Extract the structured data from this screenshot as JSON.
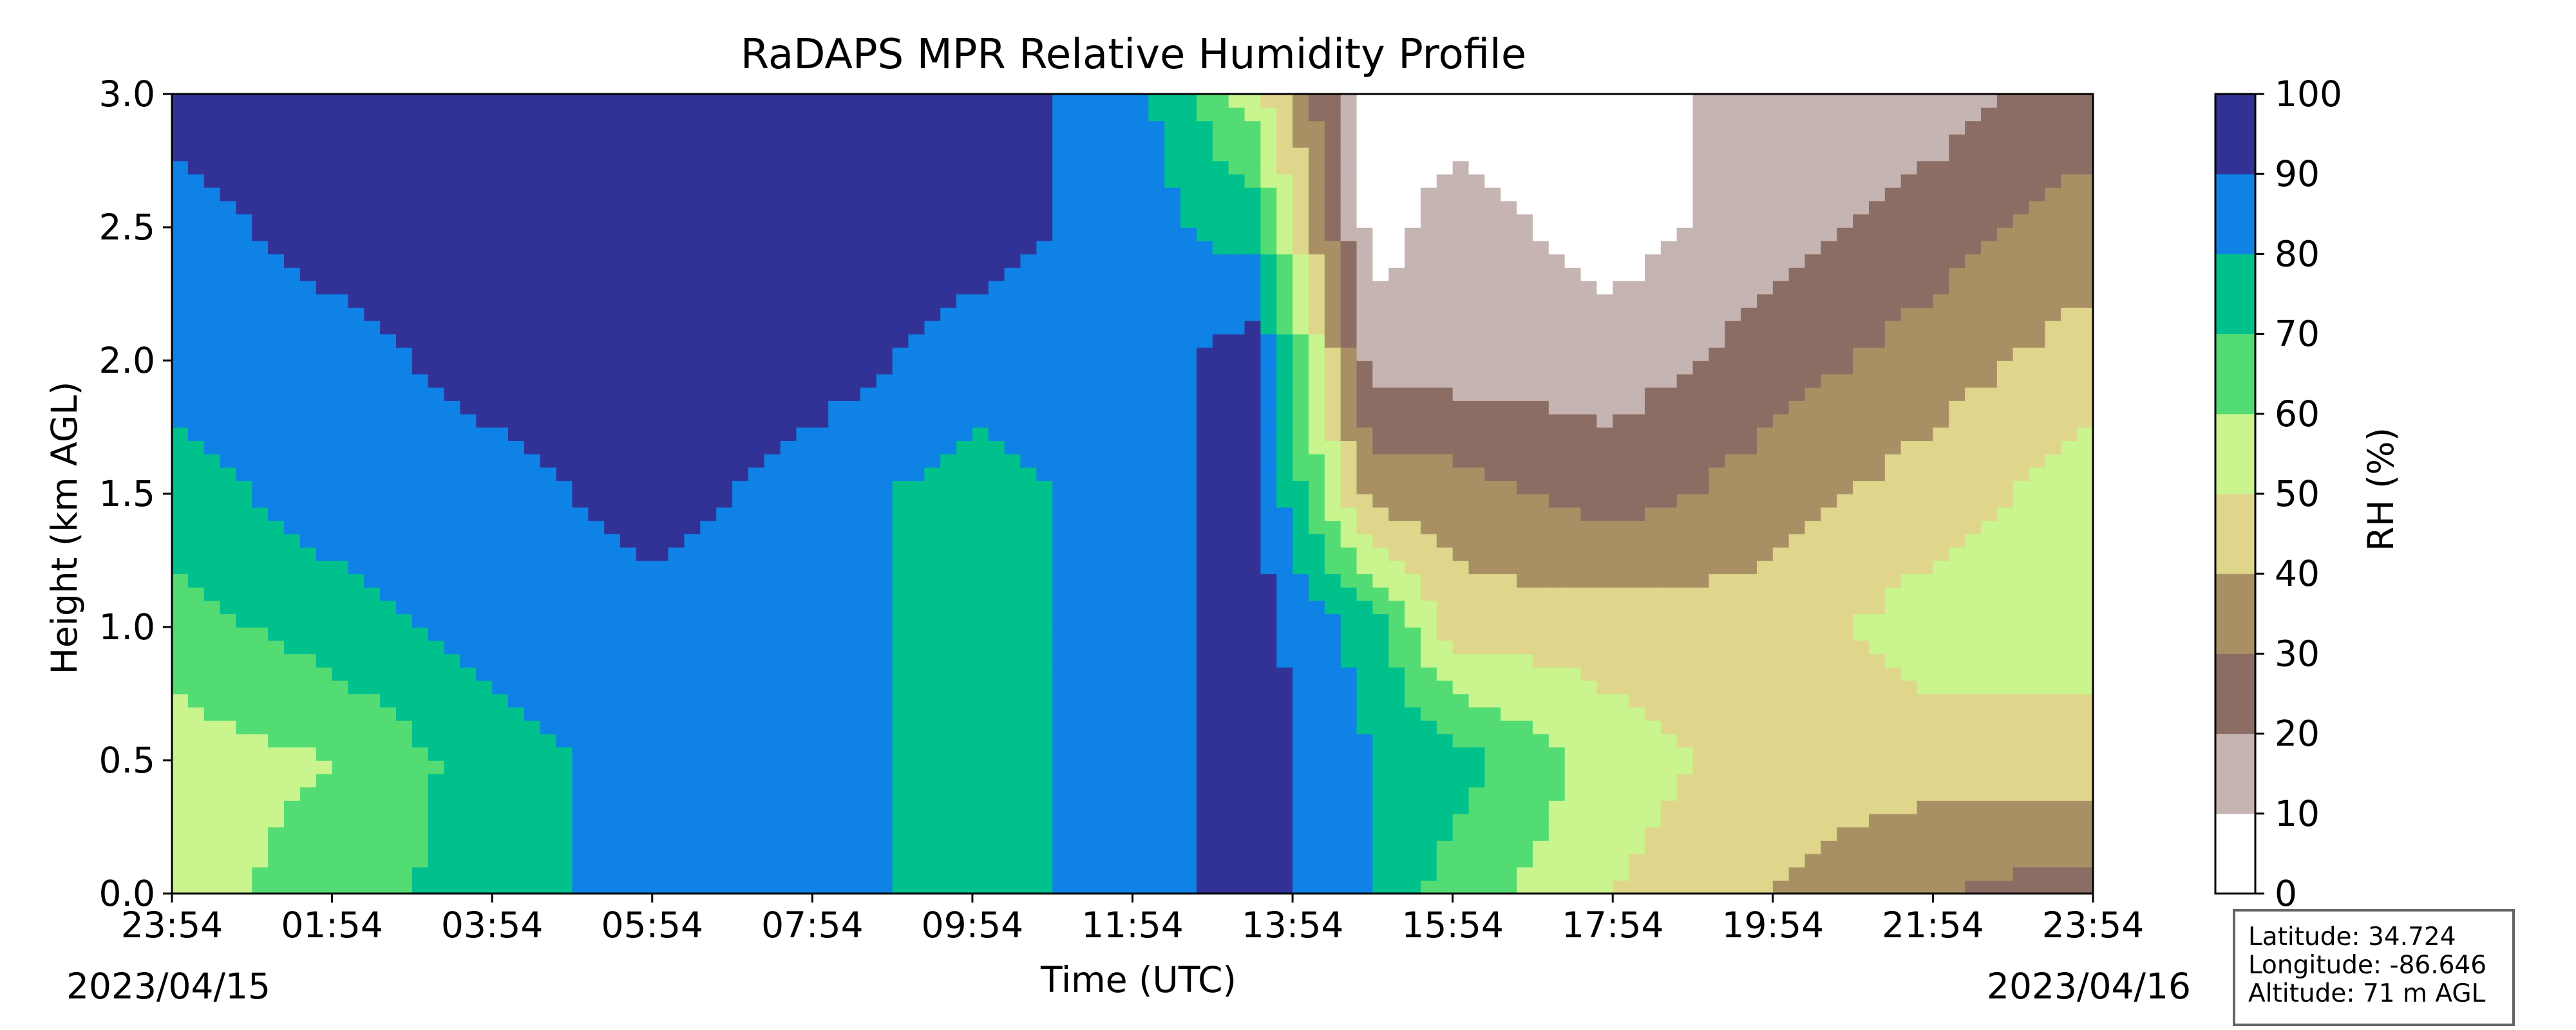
{
  "chart_data": {
    "type": "filled-contour",
    "title": "RaDAPS MPR Relative Humidity Profile",
    "xlabel": "Time (UTC)",
    "ylabel": "Height (km AGL)",
    "xlim": [
      "23:54",
      "23:54"
    ],
    "x_ticks": [
      "23:54",
      "01:54",
      "03:54",
      "05:54",
      "07:54",
      "09:54",
      "11:54",
      "13:54",
      "15:54",
      "17:54",
      "19:54",
      "21:54",
      "23:54"
    ],
    "ylim": [
      0.0,
      3.0
    ],
    "y_ticks": [
      "0.0",
      "0.5",
      "1.0",
      "1.5",
      "2.0",
      "2.5",
      "3.0"
    ],
    "start_date": "2023/04/15",
    "end_date": "2023/04/16",
    "colorbar": {
      "label": "RH (%)",
      "ticks": [
        "0",
        "10",
        "20",
        "30",
        "40",
        "50",
        "60",
        "70",
        "80",
        "90",
        "100"
      ],
      "levels": [
        0,
        10,
        20,
        30,
        40,
        50,
        60,
        70,
        80,
        90,
        100
      ],
      "colors": [
        "#ffffff",
        "#c5b4b1",
        "#8c6d64",
        "#a89064",
        "#dfd68c",
        "#c9f48e",
        "#52dc73",
        "#00c08c",
        "#0f82e6",
        "#323296"
      ]
    },
    "approx_rh_grid": {
      "time_hours_since_start": [
        0,
        2,
        4,
        6,
        8,
        10,
        12,
        13.5,
        15,
        16,
        18,
        20,
        22,
        24
      ],
      "height_km": [
        0.0,
        0.5,
        1.0,
        1.5,
        2.0,
        2.5,
        3.0
      ],
      "rh_percent_by_height": [
        [
          55,
          65,
          75,
          85,
          85,
          75,
          85,
          95,
          80,
          65,
          50,
          40,
          30,
          25
        ],
        [
          55,
          60,
          75,
          85,
          85,
          75,
          85,
          95,
          80,
          75,
          55,
          45,
          45,
          45
        ],
        [
          65,
          75,
          85,
          85,
          85,
          75,
          85,
          95,
          75,
          45,
          45,
          45,
          55,
          55
        ],
        [
          75,
          85,
          85,
          95,
          85,
          75,
          85,
          95,
          35,
          35,
          25,
          35,
          45,
          55
        ],
        [
          85,
          85,
          95,
          95,
          95,
          85,
          85,
          95,
          15,
          15,
          15,
          25,
          35,
          45
        ],
        [
          85,
          95,
          95,
          95,
          95,
          95,
          85,
          75,
          5,
          15,
          5,
          15,
          25,
          35
        ],
        [
          95,
          95,
          95,
          95,
          95,
          95,
          85,
          55,
          5,
          5,
          5,
          15,
          15,
          25
        ]
      ]
    }
  },
  "info_box": {
    "latitude": "Latitude: 34.724",
    "longitude": "Longitude: -86.646",
    "altitude": "Altitude: 71 m AGL"
  }
}
